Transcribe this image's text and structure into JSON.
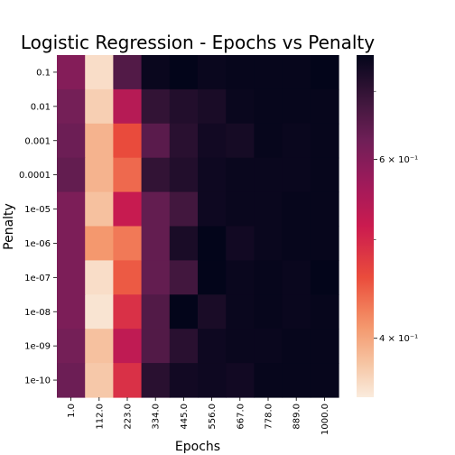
{
  "chart_data": {
    "type": "heatmap",
    "title": "Logistic Regression - Epochs vs Penalty",
    "xlabel": "Epochs",
    "ylabel": "Penalty",
    "x_categories": [
      "1.0",
      "112.0",
      "223.0",
      "334.0",
      "445.0",
      "556.0",
      "667.0",
      "778.0",
      "889.0",
      "1000.0"
    ],
    "y_categories": [
      "0.1",
      "0.01",
      "0.001",
      "0.0001",
      "1e-05",
      "1e-06",
      "1e-07",
      "1e-08",
      "1e-09",
      "1e-10"
    ],
    "colormap": "rocket_r",
    "color_scale": "log",
    "color_range": [
      0.35,
      0.76
    ],
    "colorbar_ticks": [
      {
        "value": 0.6,
        "label": "6 × 10⁻¹"
      },
      {
        "value": 0.4,
        "label": "4 × 10⁻¹"
      }
    ],
    "values": [
      [
        0.6,
        0.36,
        0.66,
        0.75,
        0.76,
        0.75,
        0.755,
        0.755,
        0.755,
        0.76
      ],
      [
        0.62,
        0.37,
        0.54,
        0.7,
        0.72,
        0.73,
        0.75,
        0.755,
        0.755,
        0.755
      ],
      [
        0.63,
        0.39,
        0.46,
        0.65,
        0.71,
        0.74,
        0.735,
        0.755,
        0.75,
        0.755
      ],
      [
        0.64,
        0.39,
        0.44,
        0.7,
        0.72,
        0.745,
        0.75,
        0.75,
        0.75,
        0.755
      ],
      [
        0.61,
        0.38,
        0.52,
        0.64,
        0.68,
        0.745,
        0.75,
        0.75,
        0.755,
        0.755
      ],
      [
        0.61,
        0.41,
        0.43,
        0.64,
        0.73,
        0.76,
        0.74,
        0.75,
        0.755,
        0.755
      ],
      [
        0.61,
        0.36,
        0.45,
        0.64,
        0.68,
        0.76,
        0.75,
        0.755,
        0.75,
        0.76
      ],
      [
        0.61,
        0.355,
        0.49,
        0.66,
        0.77,
        0.73,
        0.75,
        0.755,
        0.75,
        0.755
      ],
      [
        0.62,
        0.38,
        0.53,
        0.66,
        0.71,
        0.745,
        0.75,
        0.75,
        0.755,
        0.755
      ],
      [
        0.63,
        0.375,
        0.49,
        0.71,
        0.74,
        0.745,
        0.74,
        0.755,
        0.755,
        0.755
      ]
    ]
  }
}
